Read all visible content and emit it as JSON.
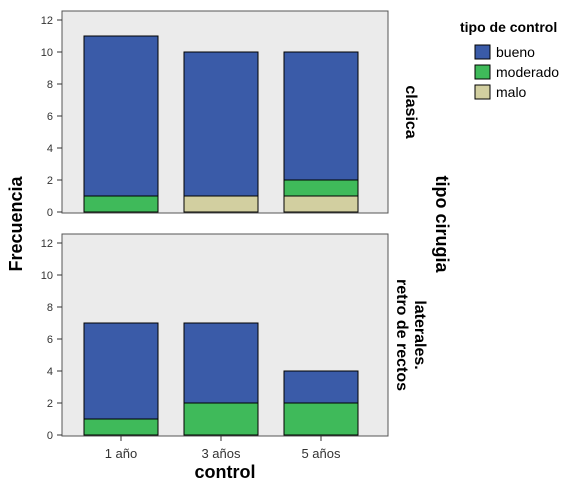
{
  "chart_data": {
    "type": "bar",
    "stacked": true,
    "categories": [
      "1 año",
      "3 años",
      "5 años"
    ],
    "xlabel": "control",
    "ylabel": "Frecuencia",
    "ylim": [
      0,
      12
    ],
    "yticks": [
      0,
      2,
      4,
      6,
      8,
      10,
      12
    ],
    "panel_variable": "tipo cirugia",
    "legend": {
      "title": "tipo de control",
      "placement": "top-right",
      "entries": [
        "bueno",
        "moderado",
        "malo"
      ]
    },
    "colors": {
      "bueno": "#3a5ba8",
      "moderado": "#3fba5a",
      "malo": "#d2cfa0",
      "panel_background": "#ebebeb"
    },
    "panels": [
      {
        "label_lines": [
          "clasica"
        ],
        "series": [
          {
            "name": "malo",
            "values": [
              0,
              1,
              1
            ]
          },
          {
            "name": "moderado",
            "values": [
              1,
              0,
              1
            ]
          },
          {
            "name": "bueno",
            "values": [
              10,
              9,
              8
            ]
          }
        ]
      },
      {
        "label_lines": [
          "retro de rectos",
          "laterales."
        ],
        "series": [
          {
            "name": "malo",
            "values": [
              0,
              0,
              0
            ]
          },
          {
            "name": "moderado",
            "values": [
              1,
              2,
              2
            ]
          },
          {
            "name": "bueno",
            "values": [
              6,
              5,
              2
            ]
          }
        ]
      }
    ]
  }
}
